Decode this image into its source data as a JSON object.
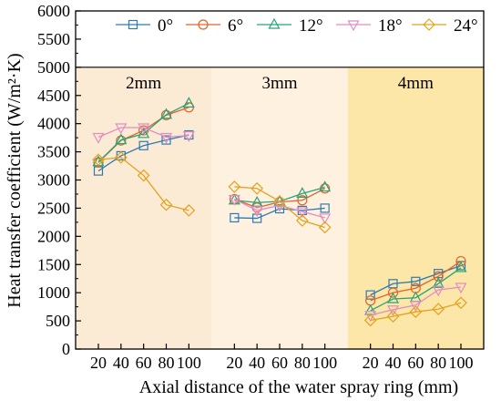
{
  "chart_data": {
    "type": "line",
    "xlabel": "Axial distance of the water spray ring (mm)",
    "ylabel": "Heat transfer coefficient (W/m²·K)",
    "ylim": [
      0,
      6000
    ],
    "yticks": [
      0,
      500,
      1000,
      1500,
      2000,
      2500,
      3000,
      3500,
      4000,
      4500,
      5000,
      5500,
      6000
    ],
    "x": [
      20,
      40,
      60,
      80,
      100
    ],
    "grid": false,
    "legend_position": "top",
    "groups": [
      {
        "label": "2mm",
        "color": "#FCEBD4",
        "series": [
          {
            "name": "0°",
            "values": [
              3160,
              3430,
              3610,
              3710,
              3800
            ]
          },
          {
            "name": "6°",
            "values": [
              3310,
              3700,
              3880,
              4150,
              4290
            ]
          },
          {
            "name": "12°",
            "values": [
              3320,
              3710,
              3820,
              4160,
              4360
            ]
          },
          {
            "name": "18°",
            "values": [
              3760,
              3930,
              3930,
              3760,
              3790
            ]
          },
          {
            "name": "24°",
            "values": [
              3360,
              3400,
              3080,
              2560,
              2460
            ]
          }
        ]
      },
      {
        "label": "3mm",
        "color": "#FEF1E0",
        "series": [
          {
            "name": "0°",
            "values": [
              2330,
              2320,
              2490,
              2460,
              2500
            ]
          },
          {
            "name": "6°",
            "values": [
              2660,
              2510,
              2610,
              2640,
              2850
            ]
          },
          {
            "name": "12°",
            "values": [
              2640,
              2600,
              2620,
              2760,
              2870
            ]
          },
          {
            "name": "18°",
            "values": [
              2660,
              2460,
              2550,
              2440,
              2330
            ]
          },
          {
            "name": "24°",
            "values": [
              2880,
              2850,
              2620,
              2280,
              2160
            ]
          }
        ]
      },
      {
        "label": "4mm",
        "color": "#FCE6A8",
        "series": [
          {
            "name": "0°",
            "values": [
              960,
              1160,
              1200,
              1340,
              1480
            ]
          },
          {
            "name": "6°",
            "values": [
              860,
              1000,
              1080,
              1290,
              1560
            ]
          },
          {
            "name": "12°",
            "values": [
              680,
              890,
              910,
              1160,
              1440
            ]
          },
          {
            "name": "18°",
            "values": [
              600,
              700,
              780,
              1050,
              1100
            ]
          },
          {
            "name": "24°",
            "values": [
              510,
              580,
              660,
              710,
              820
            ]
          }
        ]
      }
    ],
    "legend": [
      {
        "name": "0°",
        "color": "#2E7BB4",
        "marker": "square"
      },
      {
        "name": "6°",
        "color": "#E2632A",
        "marker": "circle"
      },
      {
        "name": "12°",
        "color": "#27A37A",
        "marker": "triangle-up"
      },
      {
        "name": "18°",
        "color": "#E28CC4",
        "marker": "triangle-down"
      },
      {
        "name": "24°",
        "color": "#E3A21E",
        "marker": "diamond"
      }
    ]
  }
}
